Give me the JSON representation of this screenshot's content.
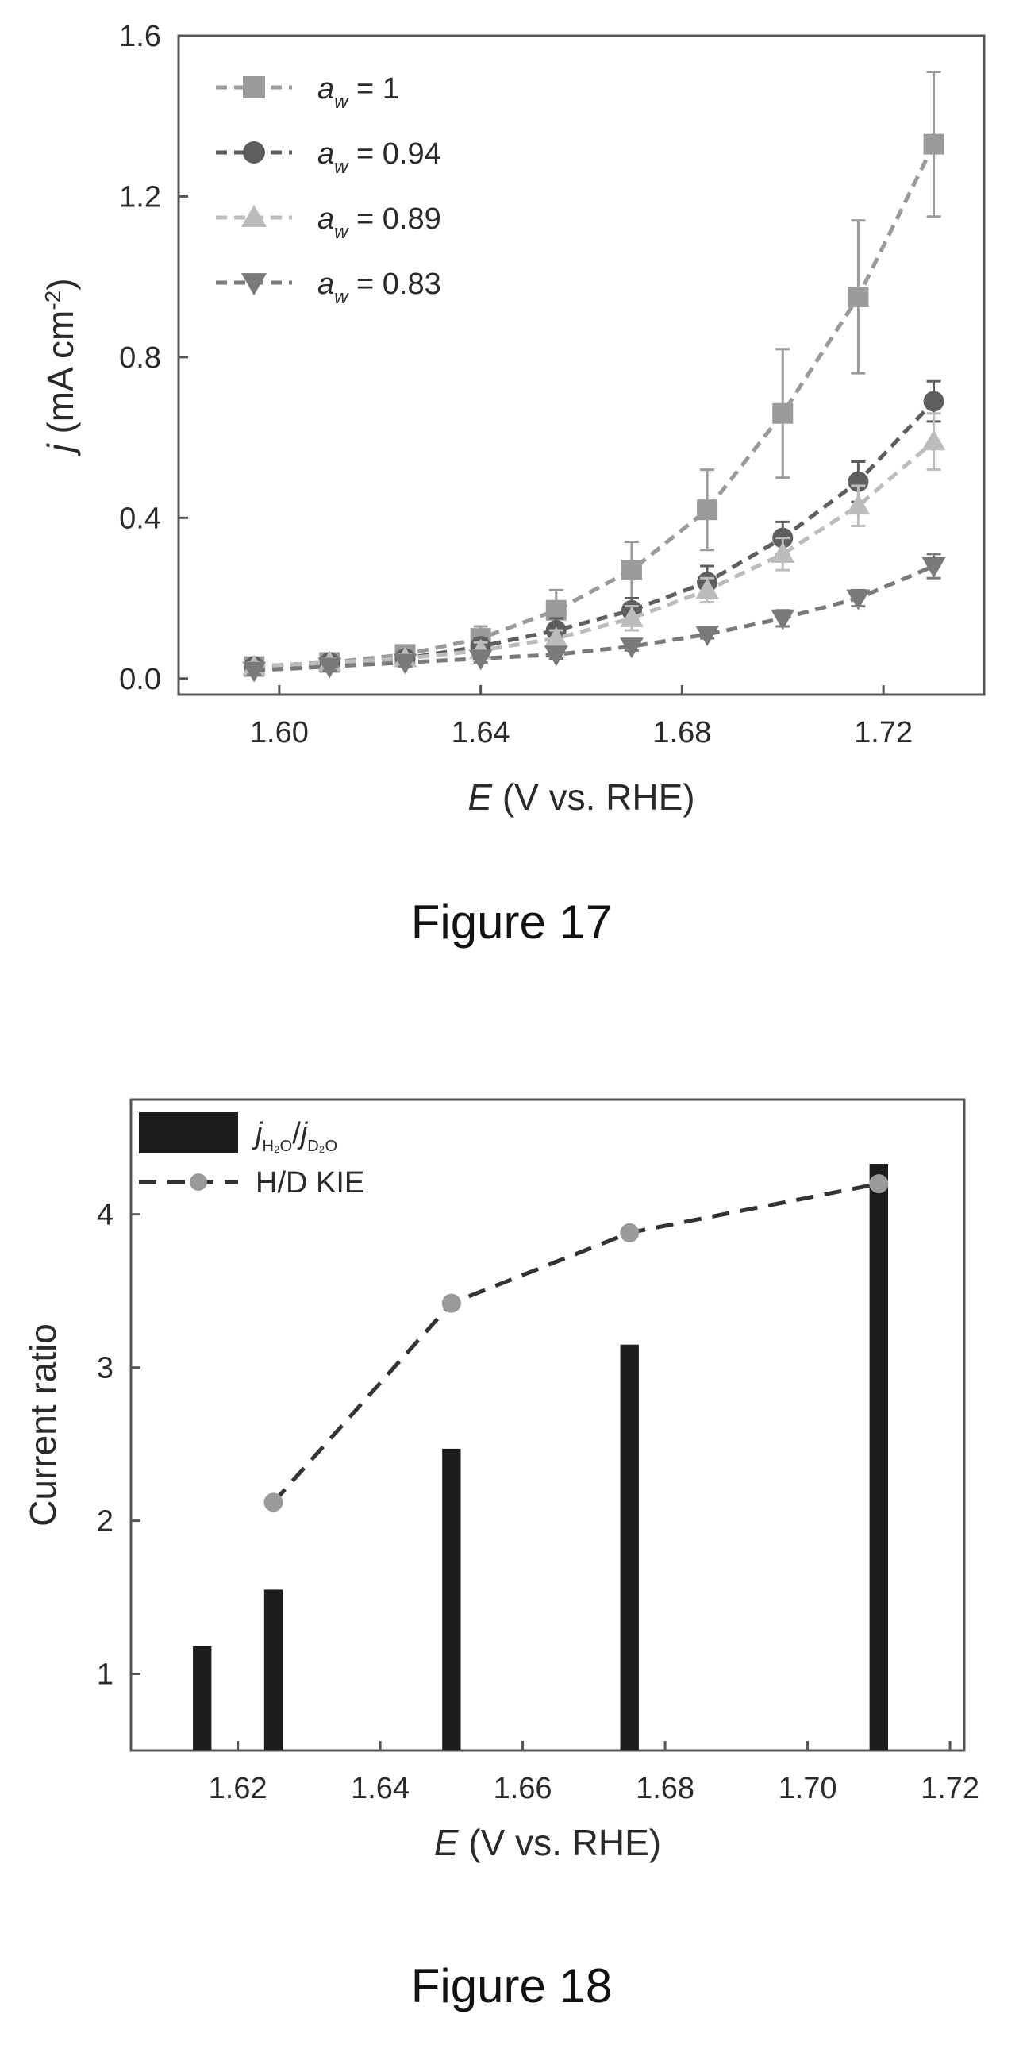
{
  "figures": [
    {
      "caption": "Figure 17"
    },
    {
      "caption": "Figure 18"
    }
  ],
  "chart_data": [
    {
      "type": "line",
      "xlabel": "E (V vs. RHE)",
      "ylabel": "j (mA cm⁻²)",
      "xlim": [
        1.58,
        1.74
      ],
      "ylim": [
        -0.04,
        1.6
      ],
      "xticks": [
        1.6,
        1.64,
        1.68,
        1.72
      ],
      "xtick_labels": [
        "1.60",
        "1.64",
        "1.68",
        "1.72"
      ],
      "yticks": [
        0.0,
        0.4,
        0.8,
        1.2,
        1.6
      ],
      "ytick_labels": [
        "0.0",
        "0.4",
        "0.8",
        "1.2",
        "1.6"
      ],
      "legend_position": "top-left",
      "grid": false,
      "x": [
        1.595,
        1.61,
        1.625,
        1.64,
        1.655,
        1.67,
        1.685,
        1.7,
        1.715,
        1.73
      ],
      "series": [
        {
          "name": "a_w = 1",
          "legend_var": "a",
          "legend_sub": "w",
          "legend_value": "= 1",
          "marker": "square",
          "color": "#9a9a9a",
          "values": [
            0.03,
            0.04,
            0.06,
            0.1,
            0.17,
            0.27,
            0.42,
            0.66,
            0.95,
            1.33
          ],
          "errors": [
            0.01,
            0.01,
            0.02,
            0.03,
            0.05,
            0.07,
            0.1,
            0.16,
            0.19,
            0.18
          ]
        },
        {
          "name": "a_w = 0.94",
          "legend_var": "a",
          "legend_sub": "w",
          "legend_value": "= 0.94",
          "marker": "circle",
          "color": "#5e5e5e",
          "values": [
            0.03,
            0.04,
            0.05,
            0.08,
            0.12,
            0.17,
            0.24,
            0.35,
            0.49,
            0.69
          ],
          "errors": [
            0.01,
            0.01,
            0.01,
            0.02,
            0.03,
            0.03,
            0.04,
            0.04,
            0.05,
            0.05
          ]
        },
        {
          "name": "a_w = 0.89",
          "legend_var": "a",
          "legend_sub": "w",
          "legend_value": "= 0.89",
          "marker": "triangle-up",
          "color": "#bcbcbc",
          "values": [
            0.03,
            0.04,
            0.05,
            0.07,
            0.1,
            0.15,
            0.22,
            0.31,
            0.43,
            0.59
          ],
          "errors": [
            0.01,
            0.01,
            0.01,
            0.02,
            0.02,
            0.03,
            0.03,
            0.04,
            0.05,
            0.07
          ]
        },
        {
          "name": "a_w = 0.83",
          "legend_var": "a",
          "legend_sub": "w",
          "legend_value": "= 0.83",
          "marker": "triangle-down",
          "color": "#7a7a7a",
          "values": [
            0.02,
            0.03,
            0.04,
            0.05,
            0.06,
            0.08,
            0.11,
            0.15,
            0.2,
            0.28
          ],
          "errors": [
            0.01,
            0.01,
            0.01,
            0.01,
            0.01,
            0.01,
            0.01,
            0.02,
            0.02,
            0.03
          ]
        }
      ]
    },
    {
      "type": "bar",
      "xlabel": "E (V vs. RHE)",
      "ylabel": "Current ratio",
      "xlim": [
        1.605,
        1.722
      ],
      "ylim": [
        0.5,
        4.75
      ],
      "xticks": [
        1.62,
        1.64,
        1.66,
        1.68,
        1.7,
        1.72
      ],
      "xtick_labels": [
        "1.62",
        "1.64",
        "1.66",
        "1.68",
        "1.70",
        "1.72"
      ],
      "yticks": [
        1,
        2,
        3,
        4
      ],
      "ytick_labels": [
        "1",
        "2",
        "3",
        "4"
      ],
      "legend_position": "top-left",
      "grid": false,
      "bar_width": 0.0026,
      "bars": {
        "name": "j_H2O / j_D2O",
        "legend_var": "j",
        "legend_sub1": "H₂O",
        "legend_sub2": "D₂O",
        "color": "#1c1c1c",
        "x": [
          1.615,
          1.625,
          1.65,
          1.675,
          1.71
        ],
        "values": [
          1.18,
          1.55,
          2.47,
          3.15,
          4.33
        ]
      },
      "line": {
        "name": "H/D KIE",
        "color": "#333333",
        "marker_color": "#9a9a9a",
        "x": [
          1.625,
          1.65,
          1.675,
          1.71
        ],
        "values": [
          2.12,
          3.42,
          3.88,
          4.2
        ]
      }
    }
  ]
}
